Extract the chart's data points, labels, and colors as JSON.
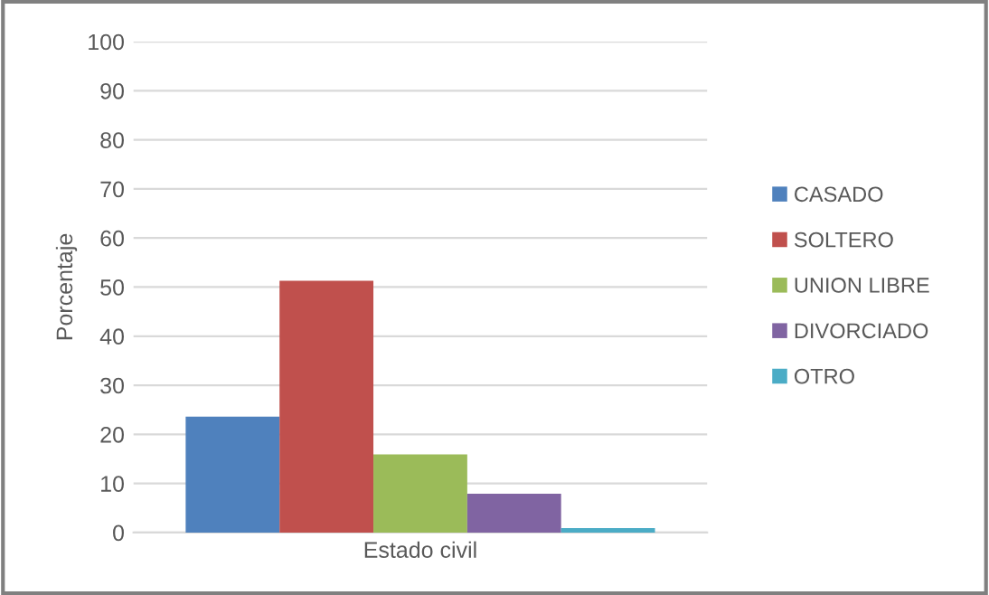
{
  "chart_data": {
    "type": "bar",
    "categories": [
      "Estado civil"
    ],
    "ylabel": "Porcentaje",
    "series": [
      {
        "name": "CASADO",
        "color": "#4f81bd",
        "values": [
          23.6
        ]
      },
      {
        "name": "SOLTERO",
        "color": "#c0504d",
        "values": [
          51.3
        ]
      },
      {
        "name": "UNION LIBRE",
        "color": "#9bbb59",
        "values": [
          15.9
        ]
      },
      {
        "name": "DIVORCIADO",
        "color": "#8064a2",
        "values": [
          7.9
        ]
      },
      {
        "name": "OTRO",
        "color": "#4bacc6",
        "values": [
          0.9
        ]
      }
    ],
    "ylim": [
      0,
      100
    ],
    "yticks": [
      0,
      10,
      20,
      30,
      40,
      50,
      60,
      70,
      80,
      90,
      100
    ],
    "grid": "y",
    "legend": "right"
  }
}
